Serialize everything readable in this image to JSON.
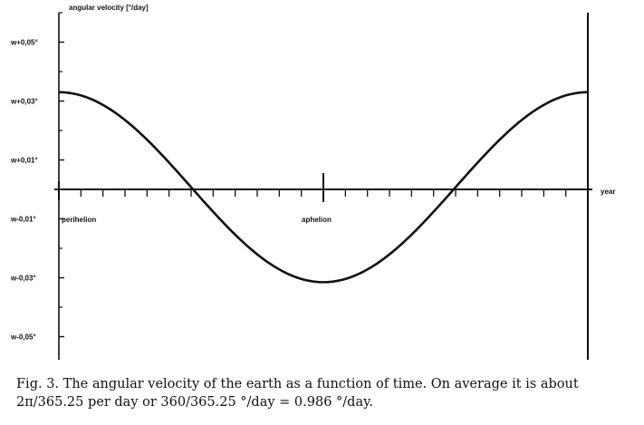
{
  "chart_data": {
    "type": "line",
    "ylabel": "angular velocity [°/day]",
    "xlabel": "year",
    "y_tick_labels": [
      {
        "value": 0.05,
        "label": "w+0,05°"
      },
      {
        "value": 0.03,
        "label": "w+0,03°"
      },
      {
        "value": 0.01,
        "label": "w+0,01°"
      },
      {
        "value": -0.01,
        "label": "w-0,01°"
      },
      {
        "value": -0.03,
        "label": "w-0,03°"
      },
      {
        "value": -0.05,
        "label": "w-0,05°"
      }
    ],
    "ylim": [
      -0.055,
      0.06
    ],
    "xlim": [
      0,
      1
    ],
    "annotations": [
      {
        "x": 0.0,
        "text": "perihelion"
      },
      {
        "x": 0.5,
        "text": "aphelion"
      }
    ],
    "series": [
      {
        "x": [
          0,
          0.25,
          0.5,
          0.75,
          1
        ],
        "values": [
          0.033,
          0.0,
          -0.0315,
          0.0,
          0.033
        ]
      }
    ],
    "grid": false
  },
  "caption": {
    "line1": "Fig. 3. The angular velocity of the earth as a function of time. On average it is about",
    "line2": "2π/365.25 per day or 360/365.25 °/day = 0.986 °/day."
  }
}
